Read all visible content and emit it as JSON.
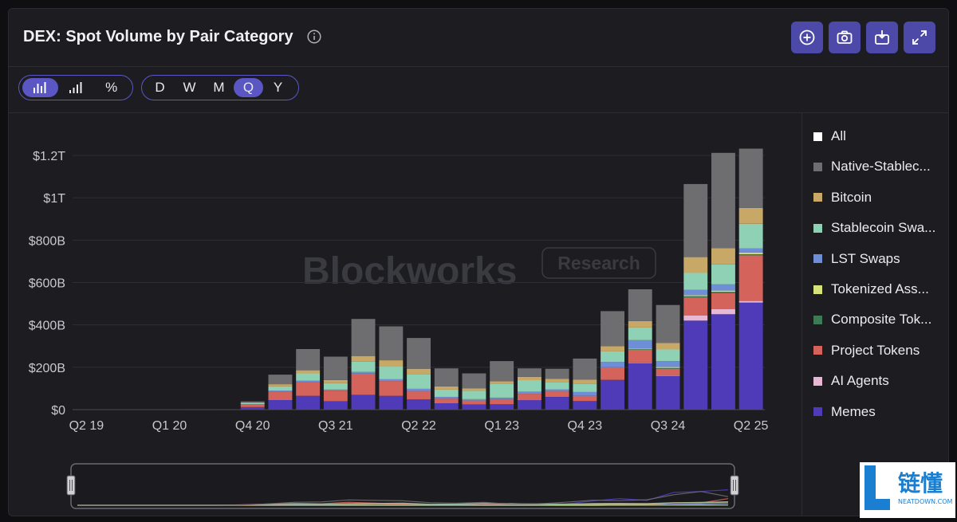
{
  "header": {
    "title": "DEX: Spot Volume by Pair Category"
  },
  "toolbar": {
    "chart_types": [
      {
        "name": "stacked-bar-icon",
        "active": true
      },
      {
        "name": "bar-chart-icon",
        "active": false
      },
      {
        "name": "percent-icon",
        "active": false
      }
    ],
    "periods": [
      {
        "label": "D",
        "active": false
      },
      {
        "label": "W",
        "active": false
      },
      {
        "label": "M",
        "active": false
      },
      {
        "label": "Q",
        "active": true
      },
      {
        "label": "Y",
        "active": false
      }
    ],
    "percent_symbol": "%"
  },
  "header_buttons": [
    "add-circle-icon",
    "camera-icon",
    "download-image-icon",
    "expand-icon"
  ],
  "watermark": {
    "brand": "Blockworks",
    "badge": "Research"
  },
  "corner_logo": {
    "glyph": "L",
    "text": "链懂",
    "sub": "NEATDOWN.COM"
  },
  "chart_data": {
    "type": "bar",
    "stacked": true,
    "title": "DEX: Spot Volume by Pair Category",
    "x": [
      "Q2 19",
      "Q3 19",
      "Q4 19",
      "Q1 20",
      "Q2 20",
      "Q3 20",
      "Q4 20",
      "Q1 21",
      "Q2 21",
      "Q3 21",
      "Q4 21",
      "Q1 22",
      "Q2 22",
      "Q3 22",
      "Q4 22",
      "Q1 23",
      "Q2 23",
      "Q3 23",
      "Q4 23",
      "Q1 24",
      "Q2 24",
      "Q3 24",
      "Q4 24",
      "Q1 25",
      "Q2 25"
    ],
    "x_tick_labels": [
      "Q2 19",
      "Q1 20",
      "Q4 20",
      "Q3 21",
      "Q2 22",
      "Q1 23",
      "Q4 23",
      "Q3 24",
      "Q2 25"
    ],
    "y_tick_labels": [
      "$0",
      "$200B",
      "$400B",
      "$600B",
      "$800B",
      "$1T",
      "$1.2T"
    ],
    "ylim": [
      0,
      1200
    ],
    "y_unit": "billion USD",
    "grid": true,
    "legend_position": "right",
    "series": [
      {
        "name": "Memes",
        "color": "#4f3ab8",
        "values": [
          0,
          0,
          0,
          0,
          1,
          2,
          12,
          45,
          65,
          40,
          70,
          65,
          48,
          30,
          25,
          25,
          45,
          60,
          40,
          140,
          220,
          160,
          420,
          450,
          505
        ]
      },
      {
        "name": "AI Agents",
        "color": "#e8b7d3",
        "values": [
          0,
          0,
          0,
          0,
          0,
          0,
          0,
          0,
          0,
          0,
          0,
          0,
          0,
          0,
          0,
          0,
          0,
          0,
          0,
          0,
          2,
          3,
          25,
          25,
          8
        ]
      },
      {
        "name": "Project Tokens",
        "color": "#d4635c",
        "values": [
          0,
          0,
          0,
          0,
          0,
          0,
          12,
          40,
          65,
          50,
          100,
          70,
          40,
          22,
          18,
          25,
          30,
          28,
          25,
          60,
          60,
          30,
          85,
          75,
          215
        ]
      },
      {
        "name": "Composite Tokens",
        "color": "#3d7a55",
        "values": [
          0,
          0,
          0,
          0,
          0,
          0,
          0,
          0,
          0,
          0,
          0,
          0,
          0,
          0,
          0,
          0,
          0,
          0,
          0,
          0,
          3,
          4,
          5,
          6,
          6
        ]
      },
      {
        "name": "Tokenized Assets",
        "color": "#d6e37a",
        "values": [
          0,
          0,
          0,
          0,
          0,
          0,
          0,
          0,
          0,
          0,
          0,
          0,
          0,
          0,
          0,
          0,
          0,
          0,
          0,
          0,
          3,
          4,
          5,
          6,
          8
        ]
      },
      {
        "name": "LST Swaps",
        "color": "#6e8fd8",
        "values": [
          0,
          0,
          0,
          0,
          0,
          0,
          2,
          5,
          6,
          5,
          8,
          8,
          10,
          8,
          6,
          7,
          9,
          8,
          18,
          25,
          40,
          28,
          25,
          30,
          20
        ]
      },
      {
        "name": "Stablecoin Swaps",
        "color": "#8fd1b5",
        "values": [
          0,
          0,
          0,
          0,
          0,
          0,
          5,
          20,
          35,
          30,
          50,
          60,
          70,
          35,
          40,
          65,
          55,
          35,
          40,
          50,
          60,
          55,
          80,
          95,
          115
        ]
      },
      {
        "name": "Bitcoin",
        "color": "#c8a867",
        "values": [
          0,
          0,
          0,
          0,
          0,
          0,
          3,
          10,
          15,
          15,
          25,
          30,
          25,
          15,
          12,
          12,
          16,
          14,
          18,
          25,
          30,
          30,
          75,
          75,
          75
        ]
      },
      {
        "name": "Native-Stablecoin",
        "color": "#6e6e70",
        "values": [
          0,
          0,
          0,
          0,
          0,
          0,
          5,
          45,
          100,
          110,
          175,
          160,
          145,
          85,
          70,
          95,
          40,
          48,
          100,
          165,
          150,
          180,
          345,
          450,
          280
        ]
      }
    ],
    "legend": [
      "All",
      "Native-Stablec...",
      "Bitcoin",
      "Stablecoin Swa...",
      "LST Swaps",
      "Tokenized Ass...",
      "Composite Tok...",
      "Project Tokens",
      "AI Agents",
      "Memes"
    ],
    "legend_colors": [
      "#ffffff",
      "#6e6e70",
      "#c8a867",
      "#8fd1b5",
      "#6e8fd8",
      "#d6e37a",
      "#3d7a55",
      "#d4635c",
      "#e8b7d3",
      "#4f3ab8"
    ]
  }
}
